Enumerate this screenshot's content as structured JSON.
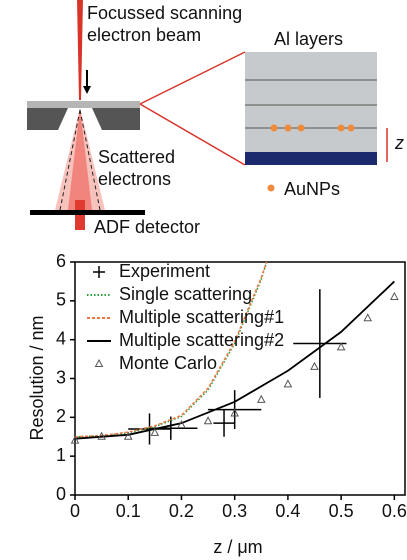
{
  "schematic": {
    "beam_label": [
      "Focussed scanning",
      "electron beam"
    ],
    "scatter_label": [
      "Scattered",
      "electrons"
    ],
    "detector_label": "ADF detector",
    "layers_label": "Al layers",
    "depth_label": "z",
    "particle_label": "AuNPs"
  },
  "chart_data": {
    "type": "line",
    "xlabel": "z / μm",
    "ylabel": "Resolution / nm",
    "xlim": [
      0,
      0.62
    ],
    "ylim": [
      0,
      6
    ],
    "xticks": [
      0,
      0.1,
      0.2,
      0.3,
      0.4,
      0.5,
      0.6
    ],
    "yticks": [
      0,
      1,
      2,
      3,
      4,
      5,
      6
    ],
    "legend": "upper left",
    "series": [
      {
        "name": "Experiment",
        "color": "#000000",
        "marker": "plus",
        "x": [
          0.14,
          0.18,
          0.28,
          0.3,
          0.46
        ],
        "y": [
          1.7,
          1.72,
          1.85,
          2.2,
          3.9
        ],
        "xerr": [
          0.04,
          0.05,
          0.02,
          0.05,
          0.05
        ],
        "yerr": [
          0.4,
          0.3,
          0.35,
          0.5,
          1.4
        ]
      },
      {
        "name": "Single scattering",
        "color": "#2a9d3a",
        "style": "dotted",
        "x": [
          0,
          0.05,
          0.1,
          0.15,
          0.2,
          0.25,
          0.3,
          0.35,
          0.36
        ],
        "y": [
          1.5,
          1.52,
          1.6,
          1.76,
          2.02,
          2.7,
          3.9,
          5.55,
          6
        ]
      },
      {
        "name": "Multiple scattering#1",
        "color": "#f07840",
        "style": "dashed",
        "x": [
          0,
          0.05,
          0.1,
          0.15,
          0.2,
          0.25,
          0.3,
          0.35,
          0.36
        ],
        "y": [
          1.5,
          1.53,
          1.62,
          1.78,
          2.05,
          2.75,
          3.95,
          5.6,
          6
        ]
      },
      {
        "name": "Multiple scattering#2",
        "color": "#000000",
        "style": "solid",
        "x": [
          0,
          0.1,
          0.2,
          0.3,
          0.4,
          0.5,
          0.6
        ],
        "y": [
          1.45,
          1.55,
          1.85,
          2.4,
          3.2,
          4.2,
          5.5
        ]
      },
      {
        "name": "Monte Carlo",
        "color": "#555555",
        "marker": "triangle",
        "x": [
          0,
          0.05,
          0.1,
          0.15,
          0.2,
          0.25,
          0.3,
          0.35,
          0.4,
          0.45,
          0.5,
          0.55,
          0.6
        ],
        "y": [
          1.4,
          1.5,
          1.5,
          1.6,
          1.8,
          1.9,
          2.1,
          2.45,
          2.85,
          3.3,
          3.8,
          4.55,
          5.1
        ]
      }
    ]
  }
}
